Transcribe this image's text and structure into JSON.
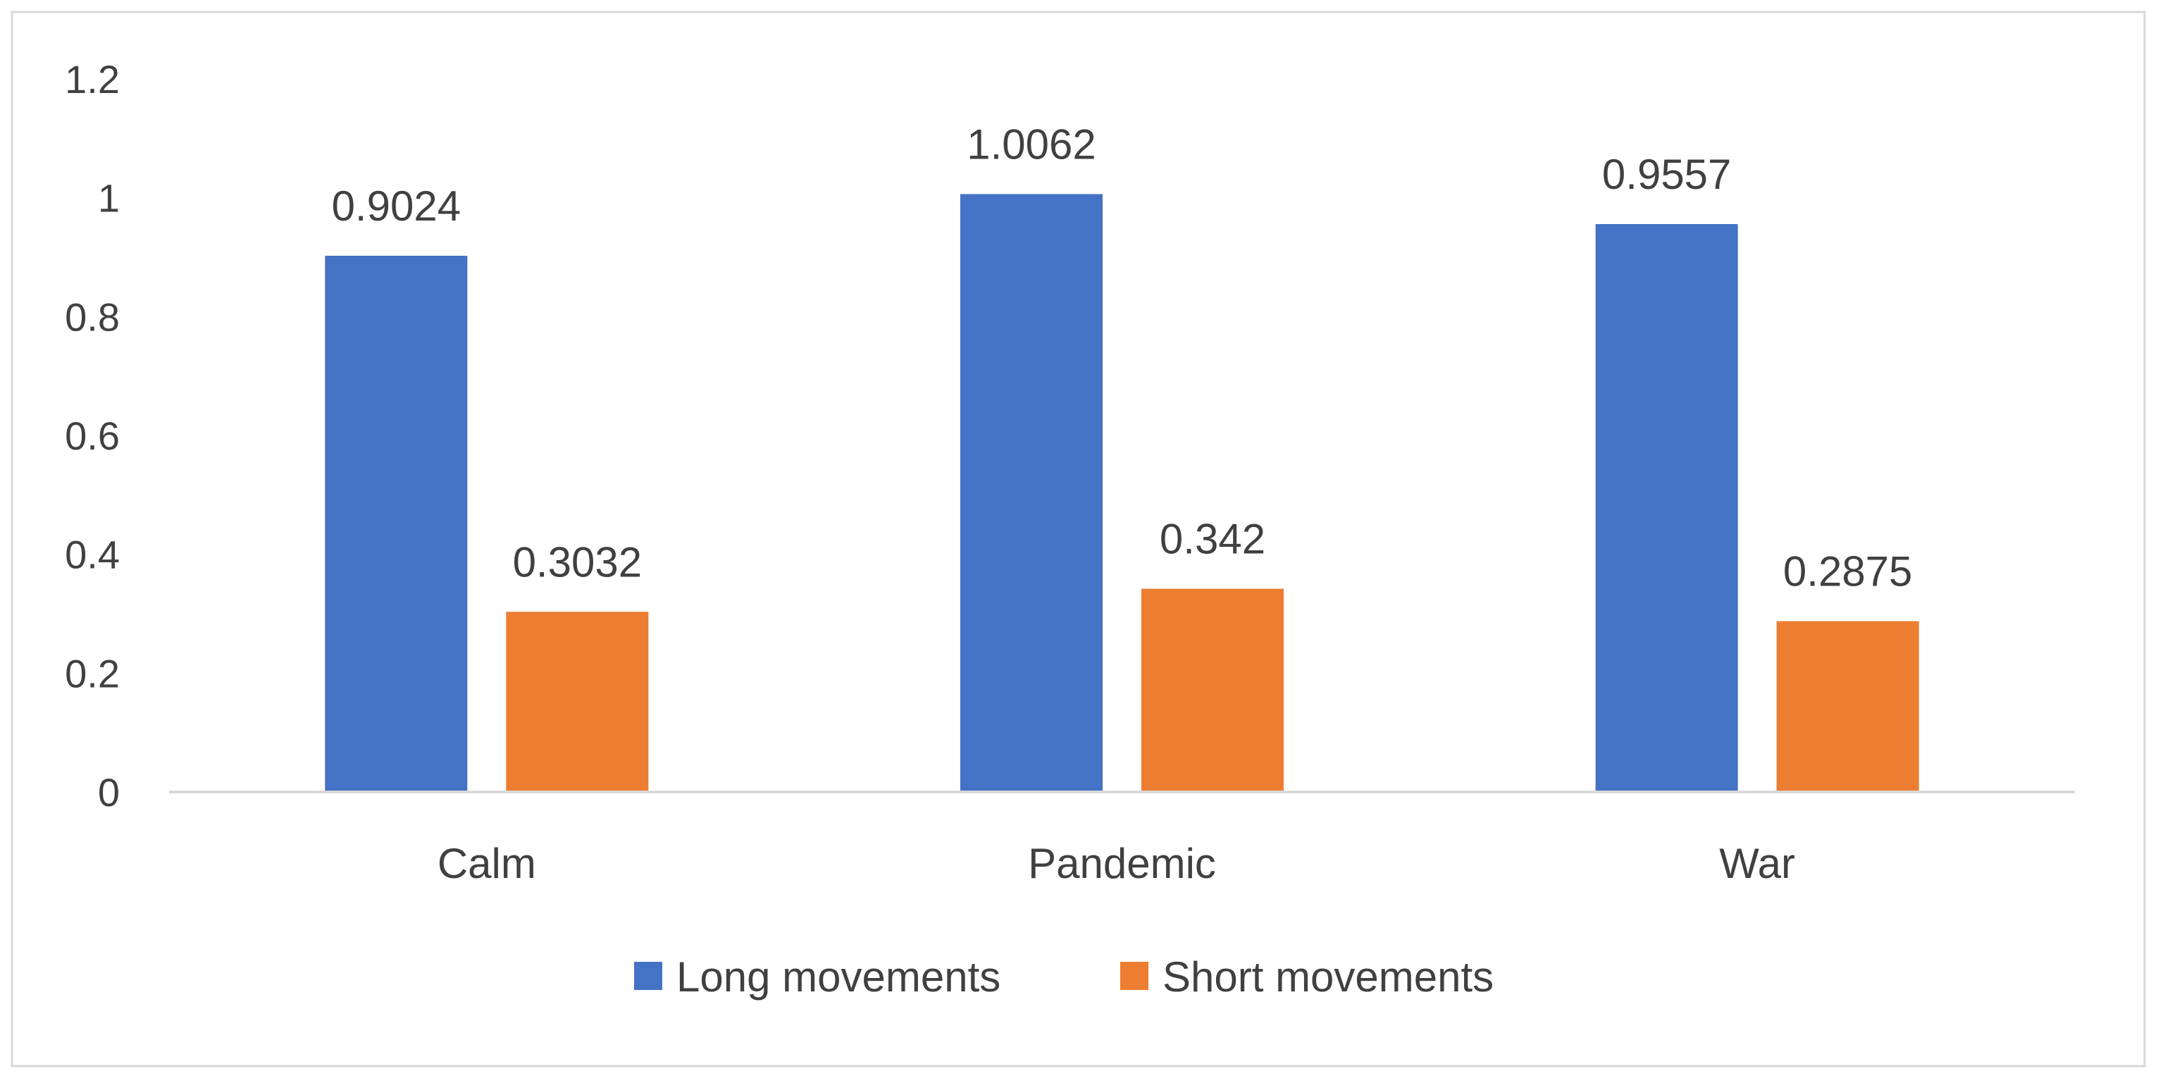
{
  "chart_data": {
    "type": "bar",
    "categories": [
      "Calm",
      "Pandemic",
      "War"
    ],
    "series": [
      {
        "name": "Long movements",
        "values": [
          0.9024,
          1.0062,
          0.9557
        ],
        "labels": [
          "0.9024",
          "1.0062",
          "0.9557"
        ],
        "color": "#4472C4"
      },
      {
        "name": "Short movements",
        "values": [
          0.3032,
          0.342,
          0.2875
        ],
        "labels": [
          "0.3032",
          "0.342",
          "0.2875"
        ],
        "color": "#ED7D31"
      }
    ],
    "ylim": [
      0,
      1.2
    ],
    "yticks": [
      0,
      0.2,
      0.4,
      0.6,
      0.8,
      1,
      1.2
    ],
    "ytick_labels": [
      "0",
      "0.2",
      "0.4",
      "0.6",
      "0.8",
      "1",
      "1.2"
    ],
    "grid": false,
    "legend_position": "bottom",
    "axis_color": "#D9D9D9",
    "border_color": "#D9D9D9",
    "text_color": "#404040",
    "title": "",
    "xlabel": "",
    "ylabel": ""
  }
}
